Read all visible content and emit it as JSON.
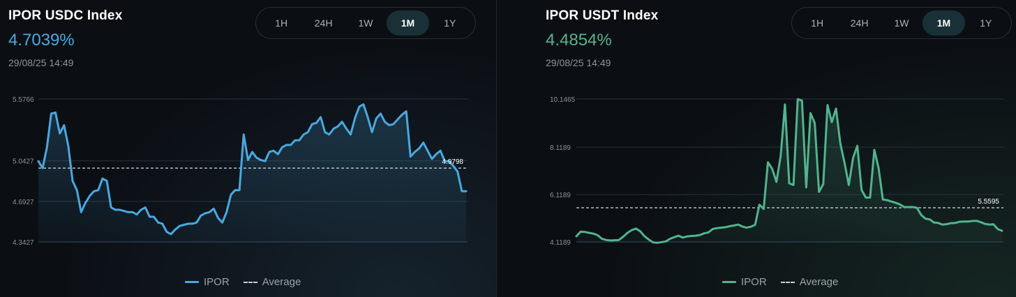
{
  "panels": [
    {
      "title": "IPOR USDC Index",
      "value": "4.7039%",
      "timestamp": "29/08/25 14:49",
      "accent": "#4aa8e0",
      "tabs": [
        "1H",
        "24H",
        "1W",
        "1M",
        "1Y"
      ],
      "active_tab": "1M",
      "legend": {
        "series": "IPOR",
        "average": "Average"
      }
    },
    {
      "title": "IPOR USDT Index",
      "value": "4.4854%",
      "timestamp": "29/08/25 14:49",
      "accent": "#52b48d",
      "tabs": [
        "1H",
        "24H",
        "1W",
        "1M",
        "1Y"
      ],
      "active_tab": "1M",
      "legend": {
        "series": "IPOR",
        "average": "Average"
      }
    }
  ],
  "chart_data": [
    {
      "type": "area",
      "title": "IPOR USDC Index",
      "yticks": [
        "5.5766",
        "5.0427",
        "4.6927",
        "4.3427"
      ],
      "ylim": [
        4.3427,
        5.5766
      ],
      "ytick_values": [
        5.5766,
        5.0427,
        4.6927,
        4.3427
      ],
      "average": 4.9798,
      "average_label": "4.9798",
      "series": [
        {
          "name": "IPOR",
          "values": [
            5.04,
            4.98,
            5.16,
            5.45,
            5.46,
            5.28,
            5.35,
            5.17,
            4.87,
            4.79,
            4.6,
            4.68,
            4.74,
            4.78,
            4.79,
            4.89,
            4.87,
            4.64,
            4.62,
            4.62,
            4.61,
            4.6,
            4.6,
            4.58,
            4.62,
            4.64,
            4.56,
            4.56,
            4.51,
            4.5,
            4.43,
            4.41,
            4.45,
            4.48,
            4.49,
            4.5,
            4.5,
            4.51,
            4.57,
            4.59,
            4.6,
            4.63,
            4.55,
            4.51,
            4.6,
            4.75,
            4.79,
            4.79,
            5.27,
            5.05,
            5.12,
            5.07,
            5.05,
            5.04,
            5.12,
            5.13,
            5.1,
            5.16,
            5.18,
            5.18,
            5.22,
            5.22,
            5.27,
            5.29,
            5.36,
            5.37,
            5.42,
            5.29,
            5.27,
            5.32,
            5.34,
            5.38,
            5.32,
            5.27,
            5.41,
            5.51,
            5.53,
            5.42,
            5.29,
            5.41,
            5.45,
            5.38,
            5.35,
            5.36,
            5.4,
            5.44,
            5.47,
            5.08,
            5.12,
            5.15,
            5.2,
            5.13,
            5.06,
            5.1,
            5.13,
            5.04,
            5.04,
            5.0,
            4.95,
            4.78,
            4.78
          ]
        }
      ]
    },
    {
      "type": "area",
      "title": "IPOR USDT Index",
      "yticks": [
        "10.1465",
        "8.1189",
        "6.1189",
        "4.1189"
      ],
      "ylim": [
        4.1189,
        10.1465
      ],
      "ytick_values": [
        10.1465,
        8.1189,
        6.1189,
        4.1189
      ],
      "average": 5.5595,
      "average_label": "5.5595",
      "series": [
        {
          "name": "IPOR",
          "values": [
            4.36,
            4.55,
            4.54,
            4.5,
            4.47,
            4.4,
            4.25,
            4.2,
            4.18,
            4.19,
            4.2,
            4.34,
            4.5,
            4.62,
            4.68,
            4.57,
            4.36,
            4.22,
            4.1,
            4.08,
            4.11,
            4.14,
            4.25,
            4.32,
            4.38,
            4.3,
            4.35,
            4.37,
            4.38,
            4.41,
            4.48,
            4.52,
            4.66,
            4.7,
            4.72,
            4.74,
            4.78,
            4.81,
            4.85,
            4.77,
            4.72,
            4.76,
            4.84,
            5.69,
            5.51,
            7.48,
            7.2,
            6.65,
            7.75,
            9.92,
            6.59,
            6.52,
            10.14,
            10.08,
            6.42,
            9.55,
            9.13,
            6.23,
            6.56,
            9.89,
            9.17,
            9.74,
            8.28,
            7.45,
            6.52,
            7.66,
            8.17,
            6.31,
            5.99,
            5.99,
            8.0,
            7.23,
            5.91,
            5.88,
            5.82,
            5.77,
            5.7,
            5.59,
            5.59,
            5.59,
            5.56,
            5.26,
            5.1,
            5.07,
            4.94,
            4.92,
            4.85,
            4.87,
            4.91,
            4.92,
            4.97,
            4.98,
            4.98,
            5.0,
            5.01,
            4.95,
            4.88,
            4.85,
            4.86,
            4.66,
            4.59
          ]
        }
      ]
    }
  ]
}
